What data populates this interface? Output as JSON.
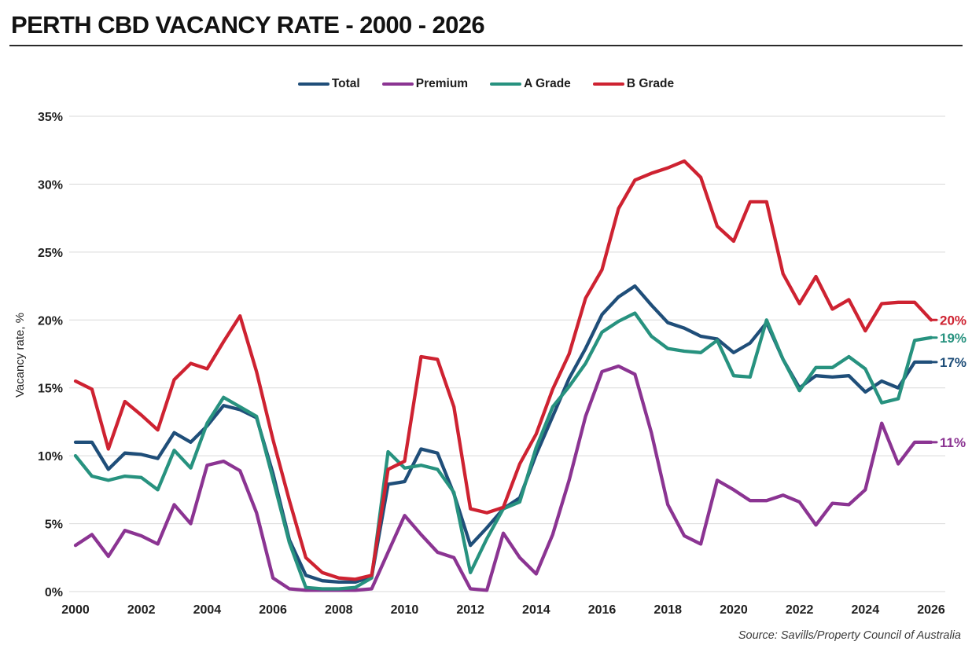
{
  "page": {
    "title": "PERTH CBD VACANCY RATE - 2000 - 2026",
    "source": "Source: Savills/Property Council of Australia"
  },
  "chart_data": {
    "type": "line",
    "title": "PERTH CBD VACANCY RATE - 2000 - 2026",
    "source": "Source: Savills/Property Council of Australia",
    "grid": true,
    "legend_position": "top-center",
    "y_axis": {
      "label": "Vacancy rate, %",
      "min": 0,
      "max": 35,
      "step": 5,
      "tick_labels": [
        "0%",
        "5%",
        "10%",
        "15%",
        "20%",
        "25%",
        "30%",
        "35%"
      ]
    },
    "x_axis": {
      "start": 2000,
      "end": 2026,
      "point_interval": 0.5,
      "tick_labels": [
        "2000",
        "2002",
        "2004",
        "2006",
        "2008",
        "2010",
        "2012",
        "2014",
        "2016",
        "2018",
        "2020",
        "2022",
        "2024",
        "2026"
      ]
    },
    "colors": {
      "grid": "#d9d9d9",
      "text": "#1f1f1f"
    },
    "series": [
      {
        "name": "Total",
        "color": "#1f4e79",
        "end_label": "17%",
        "values": [
          11.0,
          11.0,
          9.0,
          10.2,
          10.1,
          9.8,
          11.7,
          11.0,
          12.2,
          13.7,
          13.4,
          12.8,
          8.7,
          3.8,
          1.2,
          0.8,
          0.7,
          0.7,
          1.1,
          7.9,
          8.1,
          10.5,
          10.2,
          7.2,
          3.4,
          4.7,
          6.1,
          6.9,
          10.1,
          12.9,
          15.7,
          17.9,
          20.4,
          21.7,
          22.5,
          21.1,
          19.8,
          19.4,
          18.8,
          18.6,
          17.6,
          18.3,
          19.8,
          17.1,
          15.0,
          15.9,
          15.8,
          15.9,
          14.7,
          15.5,
          15.0,
          16.9,
          16.9
        ]
      },
      {
        "name": "Premium",
        "color": "#8b3492",
        "end_label": "11%",
        "values": [
          3.4,
          4.2,
          2.6,
          4.5,
          4.1,
          3.5,
          6.4,
          5.0,
          9.3,
          9.6,
          8.9,
          5.8,
          1.0,
          0.2,
          0.1,
          0.1,
          0.1,
          0.1,
          0.2,
          2.9,
          5.6,
          4.2,
          2.9,
          2.5,
          0.2,
          0.1,
          4.3,
          2.5,
          1.3,
          4.2,
          8.2,
          12.9,
          16.2,
          16.6,
          16.0,
          11.7,
          6.4,
          4.1,
          3.5,
          8.2,
          7.5,
          6.7,
          6.7,
          7.1,
          6.6,
          4.9,
          6.5,
          6.4,
          7.5,
          12.4,
          9.4,
          11.0,
          11.0
        ]
      },
      {
        "name": "A Grade",
        "color": "#27927f",
        "end_label": "19%",
        "values": [
          10.0,
          8.5,
          8.2,
          8.5,
          8.4,
          7.5,
          10.4,
          9.1,
          12.4,
          14.3,
          13.6,
          12.9,
          8.3,
          3.6,
          0.3,
          0.2,
          0.2,
          0.3,
          1.0,
          10.3,
          9.1,
          9.3,
          9.0,
          7.3,
          1.4,
          3.9,
          6.1,
          6.6,
          10.6,
          13.6,
          15.1,
          16.8,
          19.1,
          19.9,
          20.5,
          18.8,
          17.9,
          17.7,
          17.6,
          18.5,
          15.9,
          15.8,
          20.0,
          17.1,
          14.8,
          16.5,
          16.5,
          17.3,
          16.4,
          13.9,
          14.2,
          18.5,
          18.7
        ]
      },
      {
        "name": "B Grade",
        "color": "#ce2231",
        "end_label": "20%",
        "values": [
          15.5,
          14.9,
          10.5,
          14.0,
          13.0,
          11.9,
          15.6,
          16.8,
          16.4,
          18.4,
          20.3,
          16.2,
          11.2,
          6.7,
          2.5,
          1.4,
          1.0,
          0.9,
          1.2,
          9.0,
          9.6,
          17.3,
          17.1,
          13.6,
          6.1,
          5.8,
          6.2,
          9.4,
          11.6,
          14.9,
          17.5,
          21.6,
          23.7,
          28.2,
          30.3,
          30.8,
          31.2,
          31.7,
          30.5,
          26.9,
          25.8,
          28.7,
          28.7,
          23.4,
          21.2,
          23.2,
          20.8,
          21.5,
          19.2,
          21.2,
          21.3,
          21.3,
          20.0
        ]
      }
    ]
  }
}
